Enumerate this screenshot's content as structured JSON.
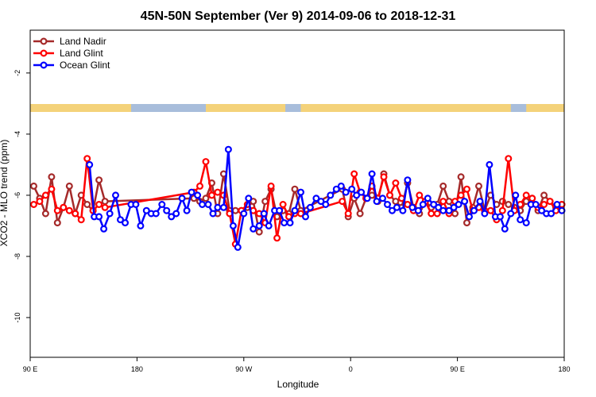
{
  "chart_data": {
    "type": "line",
    "title": "45N-50N September (Ver 9)   2014-09-06 to 2018-12-31",
    "xlabel": "Longitude",
    "ylabel": "XCO2 - MLO trend (ppm)",
    "x_ticks": [
      {
        "value": 90,
        "label": "90 E"
      },
      {
        "value": 180,
        "label": "180"
      },
      {
        "value": 270,
        "label": "90 W"
      },
      {
        "value": 360,
        "label": "0"
      },
      {
        "value": 450,
        "label": "90 E"
      },
      {
        "value": 540,
        "label": "180"
      }
    ],
    "y_ticks": [
      {
        "value": -2,
        "label": "-2"
      },
      {
        "value": -4,
        "label": "-4"
      },
      {
        "value": -6,
        "label": "-6"
      },
      {
        "value": -8,
        "label": "-8"
      },
      {
        "value": -10,
        "label": "-10"
      }
    ],
    "xlim": [
      90,
      540
    ],
    "ylim": [
      -11.3,
      -0.6
    ],
    "legend": {
      "position": "top-left"
    },
    "series": [
      {
        "name": "Land Nadir",
        "color": "#a52a2a",
        "x": [
          93,
          98,
          103,
          108,
          113,
          118,
          123,
          128,
          133,
          138,
          143,
          148,
          153,
          228,
          233,
          238,
          243,
          248,
          253,
          258,
          263,
          268,
          273,
          278,
          283,
          288,
          293,
          298,
          303,
          308,
          313,
          318,
          353,
          358,
          363,
          368,
          373,
          378,
          383,
          388,
          393,
          398,
          403,
          408,
          413,
          418,
          423,
          428,
          433,
          438,
          443,
          448,
          453,
          458,
          463,
          468,
          473,
          478,
          483,
          488,
          493,
          498,
          503,
          508,
          513,
          518,
          523,
          528,
          533,
          538
        ],
        "y": [
          -5.7,
          -6.1,
          -6.6,
          -5.4,
          -6.9,
          -6.4,
          -5.7,
          -6.6,
          -6.0,
          -6.3,
          -6.5,
          -5.5,
          -6.2,
          -6.1,
          -6.2,
          -6.1,
          -5.6,
          -6.6,
          -5.3,
          -6.5,
          -6.5,
          -6.5,
          -6.4,
          -6.2,
          -7.2,
          -6.2,
          -5.8,
          -6.7,
          -6.5,
          -6.6,
          -5.8,
          -6.5,
          -5.8,
          -6.7,
          -6.1,
          -6.6,
          -6.1,
          -6.0,
          -6.2,
          -5.3,
          -6.0,
          -6.2,
          -6.4,
          -5.6,
          -6.4,
          -6.6,
          -6.2,
          -6.4,
          -6.3,
          -5.7,
          -6.2,
          -6.6,
          -5.4,
          -6.9,
          -6.4,
          -5.7,
          -6.5,
          -6.0,
          -6.3,
          -6.2,
          -6.3,
          -6.4,
          -6.5,
          -6.2,
          -6.1,
          -6.5,
          -6.0,
          -6.2,
          -6.4,
          -6.3
        ]
      },
      {
        "name": "Land Glint",
        "color": "#ff0000",
        "x": [
          93,
          98,
          103,
          108,
          113,
          118,
          123,
          128,
          133,
          138,
          143,
          148,
          153,
          228,
          233,
          238,
          243,
          248,
          253,
          258,
          263,
          268,
          273,
          278,
          283,
          288,
          293,
          298,
          303,
          308,
          313,
          318,
          353,
          358,
          363,
          368,
          373,
          378,
          383,
          388,
          393,
          398,
          403,
          408,
          413,
          418,
          423,
          428,
          433,
          438,
          443,
          448,
          453,
          458,
          463,
          468,
          473,
          478,
          483,
          488,
          493,
          498,
          503,
          508,
          513,
          518,
          523,
          528,
          533,
          538
        ],
        "y": [
          -6.3,
          -6.2,
          -6.0,
          -5.8,
          -6.5,
          -6.4,
          -6.5,
          -6.6,
          -6.8,
          -4.8,
          -6.5,
          -6.3,
          -6.4,
          -5.9,
          -5.7,
          -4.9,
          -6.0,
          -5.9,
          -6.0,
          -6.6,
          -7.6,
          -6.5,
          -6.3,
          -6.5,
          -6.6,
          -6.9,
          -5.7,
          -7.4,
          -6.3,
          -6.7,
          -6.6,
          -6.6,
          -6.2,
          -6.6,
          -5.3,
          -5.9,
          -6.1,
          -5.7,
          -6.1,
          -5.4,
          -6.0,
          -5.6,
          -6.1,
          -6.3,
          -6.5,
          -6.0,
          -6.2,
          -6.6,
          -6.6,
          -6.2,
          -6.6,
          -6.2,
          -6.0,
          -5.8,
          -6.5,
          -6.4,
          -6.5,
          -6.5,
          -6.8,
          -6.5,
          -4.8,
          -6.5,
          -6.3,
          -6.0,
          -6.1,
          -6.4,
          -6.3,
          -6.2,
          -6.5,
          -6.3
        ]
      },
      {
        "name": "Ocean Glint",
        "color": "#0000ff",
        "x": [
          140,
          144,
          148,
          152,
          157,
          162,
          166,
          170,
          175,
          179,
          183,
          188,
          192,
          196,
          201,
          205,
          209,
          213,
          218,
          222,
          226,
          231,
          235,
          240,
          244,
          248,
          253,
          257,
          261,
          265,
          270,
          274,
          278,
          283,
          287,
          291,
          296,
          300,
          304,
          309,
          313,
          318,
          322,
          326,
          331,
          335,
          339,
          343,
          348,
          352,
          356,
          361,
          365,
          369,
          374,
          378,
          382,
          387,
          391,
          395,
          399,
          404,
          408,
          412,
          417,
          421,
          425,
          430,
          434,
          438,
          443,
          447,
          451,
          456,
          460,
          464,
          469,
          473,
          477,
          482,
          486,
          490,
          495,
          499,
          503,
          508,
          512,
          516,
          521,
          525,
          529,
          534,
          538
        ],
        "y": [
          -5.0,
          -6.7,
          -6.7,
          -7.1,
          -6.6,
          -6.0,
          -6.8,
          -6.9,
          -6.3,
          -6.3,
          -7.0,
          -6.5,
          -6.6,
          -6.6,
          -6.3,
          -6.5,
          -6.7,
          -6.6,
          -6.1,
          -6.5,
          -5.9,
          -6.0,
          -6.3,
          -6.3,
          -6.6,
          -6.4,
          -6.4,
          -4.5,
          -7.0,
          -7.7,
          -6.6,
          -6.1,
          -7.1,
          -7.0,
          -6.6,
          -7.0,
          -6.5,
          -6.5,
          -6.9,
          -6.9,
          -6.5,
          -5.9,
          -6.7,
          -6.4,
          -6.1,
          -6.2,
          -6.3,
          -6.0,
          -5.8,
          -5.7,
          -5.9,
          -5.8,
          -6.0,
          -5.9,
          -6.1,
          -5.3,
          -6.2,
          -6.1,
          -6.3,
          -6.5,
          -6.4,
          -6.5,
          -5.5,
          -6.4,
          -6.5,
          -6.3,
          -6.1,
          -6.3,
          -6.4,
          -6.5,
          -6.5,
          -6.4,
          -6.3,
          -6.2,
          -6.7,
          -6.5,
          -6.2,
          -6.6,
          -5.0,
          -6.7,
          -6.7,
          -7.1,
          -6.6,
          -6.0,
          -6.8,
          -6.9,
          -6.3,
          -6.3,
          -6.5,
          -6.6,
          -6.6,
          -6.3,
          -6.5
        ]
      }
    ]
  }
}
